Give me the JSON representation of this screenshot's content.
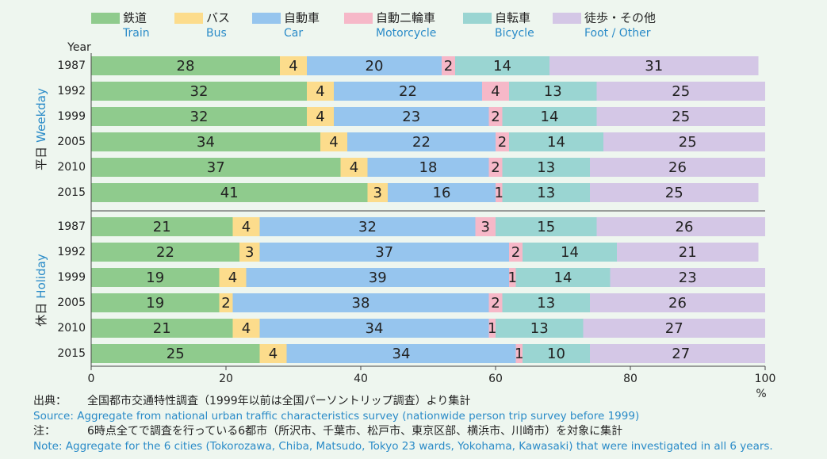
{
  "chart_data": {
    "type": "bar",
    "orientation": "horizontal",
    "stacked": true,
    "y_label": "Year",
    "x_unit": "%",
    "xlim": [
      0,
      100
    ],
    "xticks": [
      0,
      20,
      40,
      60,
      80,
      100
    ],
    "series": [
      {
        "name": "鉄道",
        "name_en": "Train",
        "color": "#8fcb8d"
      },
      {
        "name": "バス",
        "name_en": "Bus",
        "color": "#fcdc8c"
      },
      {
        "name": "自動車",
        "name_en": "Car",
        "color": "#96c5ee"
      },
      {
        "name": "自動二輪車",
        "name_en": "Motorcycle",
        "color": "#f6b8c8"
      },
      {
        "name": "自転車",
        "name_en": "Bicycle",
        "color": "#9ad5d2"
      },
      {
        "name": "徒歩・その他",
        "name_en": "Foot / Other",
        "color": "#d4c7e6"
      }
    ],
    "panels": [
      {
        "label": "平日",
        "label_en": "Weekday",
        "categories": [
          "1987",
          "1992",
          "1999",
          "2005",
          "2010",
          "2015"
        ],
        "values": [
          [
            28,
            4,
            20,
            2,
            14,
            31
          ],
          [
            32,
            4,
            22,
            4,
            13,
            25
          ],
          [
            32,
            4,
            23,
            2,
            14,
            25
          ],
          [
            34,
            4,
            22,
            2,
            14,
            25
          ],
          [
            37,
            4,
            18,
            2,
            13,
            26
          ],
          [
            41,
            3,
            16,
            1,
            13,
            25
          ]
        ]
      },
      {
        "label": "休日",
        "label_en": "Holiday",
        "categories": [
          "1987",
          "1992",
          "1999",
          "2005",
          "2010",
          "2015"
        ],
        "values": [
          [
            21,
            4,
            32,
            3,
            15,
            26
          ],
          [
            22,
            3,
            37,
            2,
            14,
            21
          ],
          [
            19,
            4,
            39,
            1,
            14,
            23
          ],
          [
            19,
            2,
            38,
            2,
            13,
            26
          ],
          [
            21,
            4,
            34,
            1,
            13,
            27
          ],
          [
            25,
            4,
            34,
            1,
            10,
            27
          ]
        ]
      }
    ],
    "notes": [
      {
        "label": "出典：",
        "text": "全国都市交通特性調査（1999年以前は全国パーソントリップ調査）より集計"
      },
      {
        "text": "Source: Aggregate from national urban traffic characteristics survey (nationwide person trip survey before 1999)"
      },
      {
        "label": "注：",
        "text": "6時点全てで調査を行っている6都市（所沢市、千葉市、松戸市、東京区部、横浜市、川崎市）を対象に集計"
      },
      {
        "text": "Note: Aggregate for the 6 cities (Tokorozawa, Chiba, Matsudo, Tokyo 23 wards, Yokohama, Kawasaki) that were investigated in all 6 years."
      }
    ]
  }
}
